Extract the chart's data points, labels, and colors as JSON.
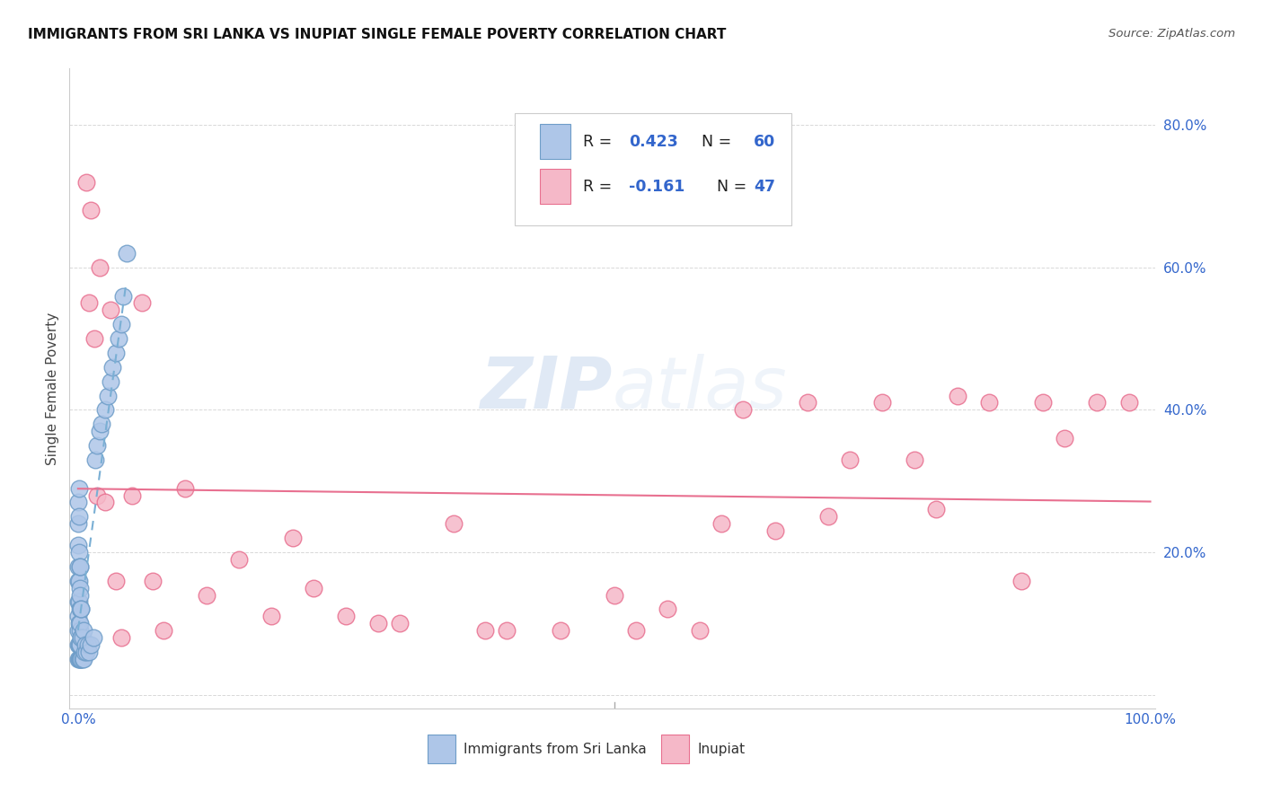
{
  "title": "IMMIGRANTS FROM SRI LANKA VS INUPIAT SINGLE FEMALE POVERTY CORRELATION CHART",
  "source": "Source: ZipAtlas.com",
  "ylabel": "Single Female Poverty",
  "watermark": "ZIPatlas",
  "sri_lanka_color": "#aec6e8",
  "inupiat_color": "#f5b8c8",
  "sri_lanka_edge": "#6e9dc8",
  "inupiat_edge": "#e87090",
  "sri_lanka_line": "#7aafd4",
  "inupiat_line": "#e87090",
  "background": "#ffffff",
  "sri_lanka_x": [
    0.0005,
    0.0005,
    0.0005,
    0.0005,
    0.0005,
    0.0005,
    0.0005,
    0.0005,
    0.0005,
    0.0005,
    0.001,
    0.001,
    0.001,
    0.001,
    0.001,
    0.001,
    0.001,
    0.001,
    0.0015,
    0.0015,
    0.0015,
    0.0015,
    0.0015,
    0.0015,
    0.002,
    0.002,
    0.002,
    0.002,
    0.002,
    0.0025,
    0.0025,
    0.0025,
    0.003,
    0.003,
    0.003,
    0.004,
    0.004,
    0.005,
    0.005,
    0.006,
    0.007,
    0.008,
    0.009,
    0.01,
    0.012,
    0.014,
    0.016,
    0.018,
    0.02,
    0.022,
    0.025,
    0.028,
    0.03,
    0.032,
    0.035,
    0.038,
    0.04,
    0.042,
    0.045
  ],
  "sri_lanka_y": [
    0.05,
    0.07,
    0.09,
    0.11,
    0.13,
    0.16,
    0.18,
    0.21,
    0.24,
    0.27,
    0.05,
    0.07,
    0.1,
    0.13,
    0.16,
    0.2,
    0.25,
    0.29,
    0.05,
    0.07,
    0.09,
    0.12,
    0.15,
    0.18,
    0.05,
    0.07,
    0.1,
    0.14,
    0.18,
    0.05,
    0.08,
    0.12,
    0.05,
    0.08,
    0.12,
    0.05,
    0.08,
    0.05,
    0.09,
    0.06,
    0.07,
    0.06,
    0.07,
    0.06,
    0.07,
    0.08,
    0.33,
    0.35,
    0.37,
    0.38,
    0.4,
    0.42,
    0.44,
    0.46,
    0.48,
    0.5,
    0.52,
    0.56,
    0.62
  ],
  "inupiat_x": [
    0.008,
    0.01,
    0.012,
    0.015,
    0.018,
    0.02,
    0.025,
    0.03,
    0.035,
    0.04,
    0.05,
    0.06,
    0.07,
    0.08,
    0.1,
    0.12,
    0.15,
    0.18,
    0.2,
    0.22,
    0.25,
    0.28,
    0.3,
    0.35,
    0.38,
    0.4,
    0.45,
    0.5,
    0.52,
    0.55,
    0.58,
    0.6,
    0.62,
    0.65,
    0.68,
    0.7,
    0.72,
    0.75,
    0.78,
    0.8,
    0.82,
    0.85,
    0.88,
    0.9,
    0.92,
    0.95,
    0.98
  ],
  "inupiat_y": [
    0.72,
    0.55,
    0.68,
    0.5,
    0.28,
    0.6,
    0.27,
    0.54,
    0.16,
    0.08,
    0.28,
    0.55,
    0.16,
    0.09,
    0.29,
    0.14,
    0.19,
    0.11,
    0.22,
    0.15,
    0.11,
    0.1,
    0.1,
    0.24,
    0.09,
    0.09,
    0.09,
    0.14,
    0.09,
    0.12,
    0.09,
    0.24,
    0.4,
    0.23,
    0.41,
    0.25,
    0.33,
    0.41,
    0.33,
    0.26,
    0.42,
    0.41,
    0.16,
    0.41,
    0.36,
    0.41,
    0.41
  ],
  "ytick_positions": [
    0.0,
    0.2,
    0.4,
    0.6,
    0.8
  ],
  "ytick_labels": [
    "",
    "20.0%",
    "40.0%",
    "60.0%",
    "80.0%"
  ],
  "tick_color": "#3366cc",
  "title_fontsize": 11,
  "axis_label_fontsize": 11,
  "tick_fontsize": 11
}
